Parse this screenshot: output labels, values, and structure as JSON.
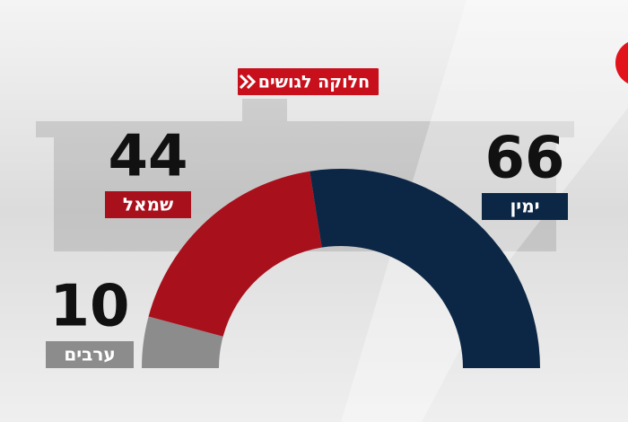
{
  "chart_data": {
    "type": "semidonut",
    "title": "חלוקה לגושים",
    "categories": [
      "ערבים",
      "שמאל",
      "ימין"
    ],
    "values": [
      10,
      44,
      66
    ],
    "colors": [
      "#8c8c8c",
      "#a8101c",
      "#0c2745"
    ]
  }
}
